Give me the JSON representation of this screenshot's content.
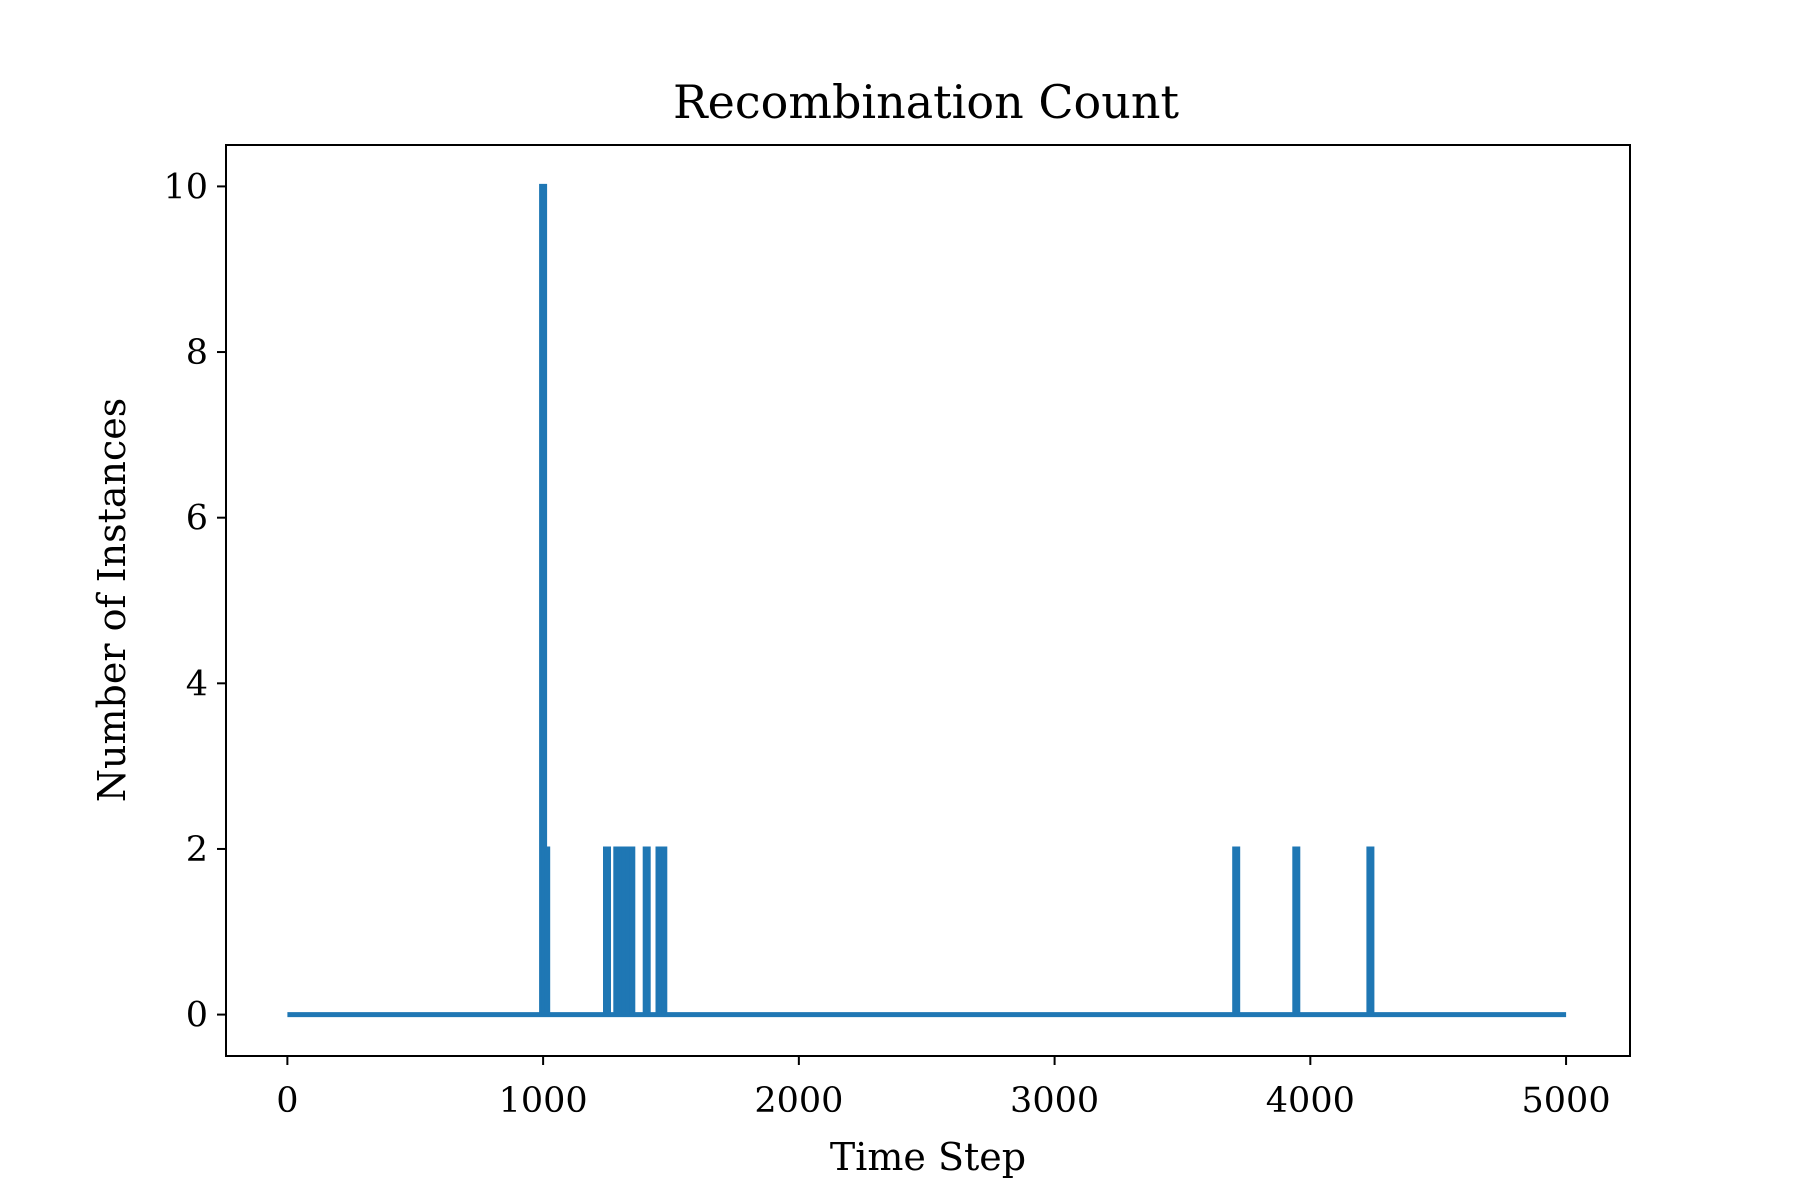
{
  "chart_data": {
    "type": "line",
    "title": "Recombination Count",
    "xlabel": "Time Step",
    "ylabel": "Number of Instances",
    "xlim": [
      -240,
      5250
    ],
    "ylim": [
      -0.5,
      10.5
    ],
    "xticks": [
      0,
      1000,
      2000,
      3000,
      4000,
      5000
    ],
    "yticks": [
      0,
      2,
      4,
      6,
      8,
      10
    ],
    "grid": false,
    "legend": "none",
    "colors": {
      "series": "#1f77b4",
      "axes": "#000000"
    },
    "series": [
      {
        "baseline": 0,
        "x_range": [
          0,
          5000
        ],
        "spikes": [
          {
            "x": 1000,
            "y": 10
          },
          {
            "x": 1012,
            "y": 2
          },
          {
            "x": 1250,
            "y": 2
          },
          {
            "x": 1290,
            "y": 2
          },
          {
            "x": 1315,
            "y": 2
          },
          {
            "x": 1330,
            "y": 2
          },
          {
            "x": 1345,
            "y": 2
          },
          {
            "x": 1405,
            "y": 2
          },
          {
            "x": 1455,
            "y": 2
          },
          {
            "x": 1470,
            "y": 2
          },
          {
            "x": 3710,
            "y": 2
          },
          {
            "x": 3945,
            "y": 2
          },
          {
            "x": 4235,
            "y": 2
          }
        ]
      }
    ]
  }
}
